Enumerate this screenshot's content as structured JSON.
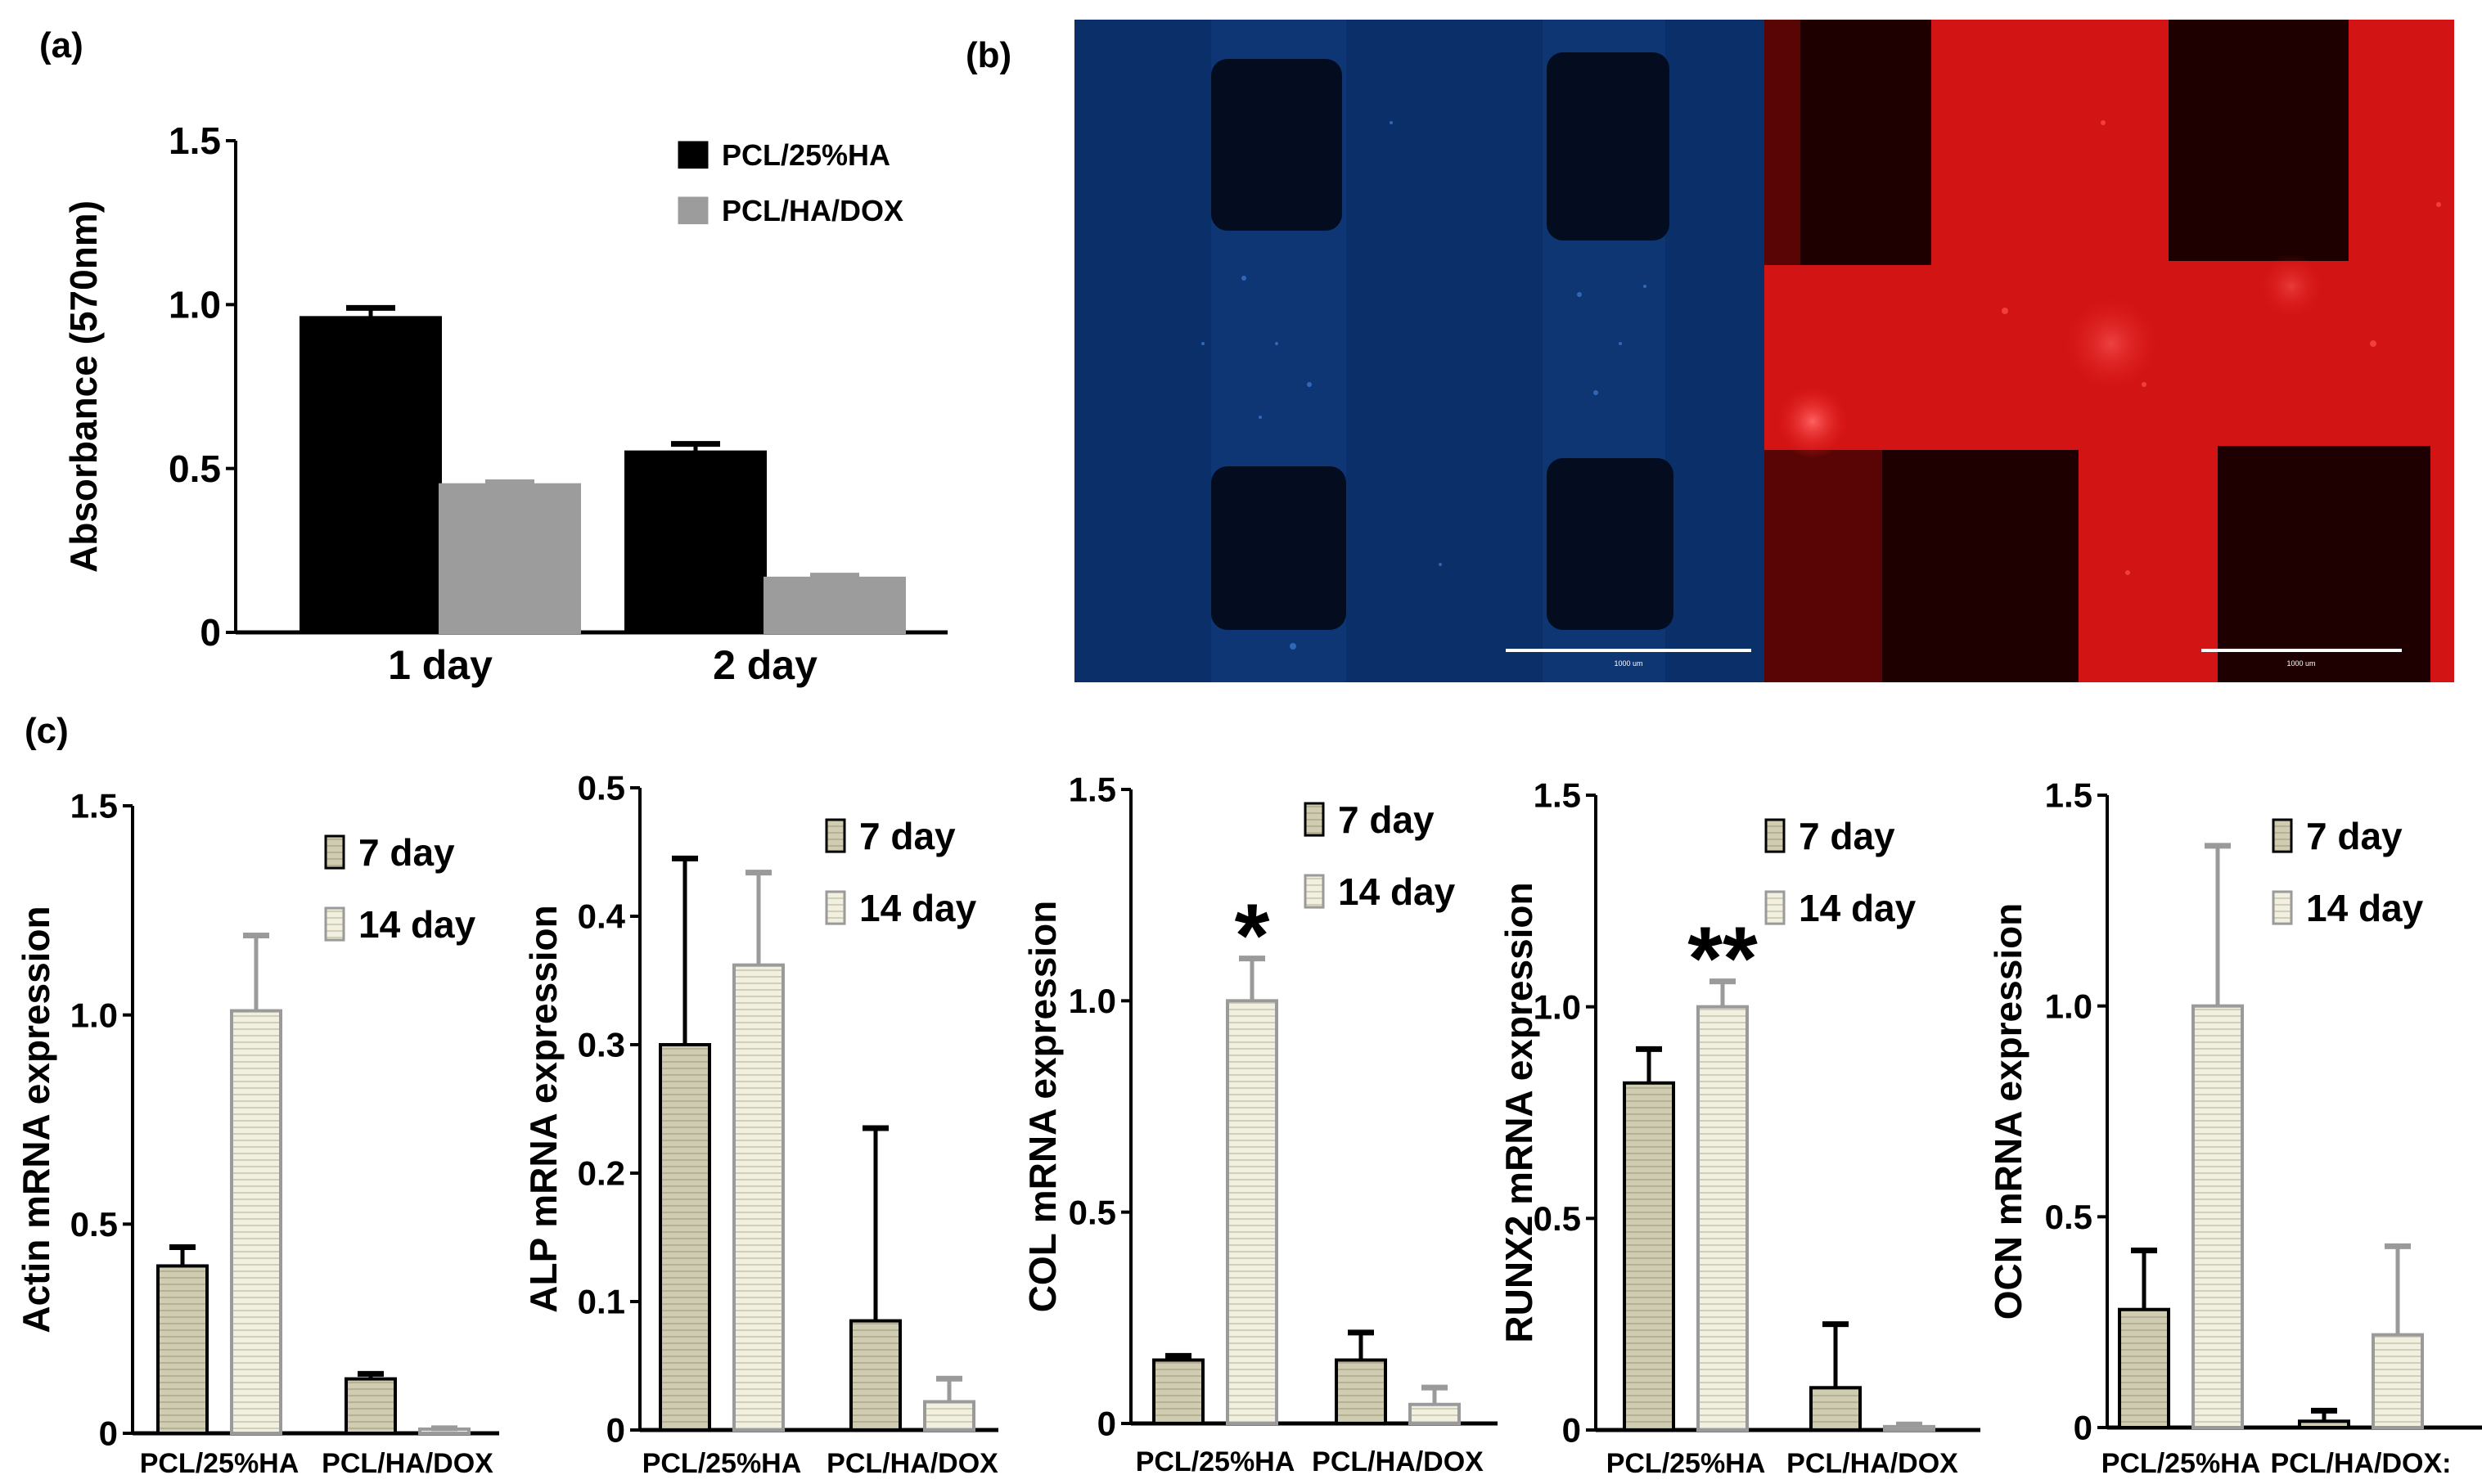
{
  "panel_labels": {
    "a": "(a)",
    "b": "(b)",
    "c": "(c)"
  },
  "colors": {
    "black_bar": "#000000",
    "gray_bar": "#9c9c9c",
    "beige_bar": "#c9c6ac",
    "light_bar": "#ecead8",
    "blue_image": "#0a2f63",
    "red_image": "#c81414"
  },
  "chart_data": [
    {
      "id": "a",
      "type": "bar",
      "title": "",
      "xlabel": "",
      "ylabel": "Absorbance (570nm)",
      "categories": [
        "1 day",
        "2 day"
      ],
      "ylim": [
        0,
        1.5
      ],
      "yticks": [
        0,
        0.5,
        1.0,
        1.5
      ],
      "ytick_labels": [
        "0",
        "0.5",
        "1.0",
        "1.5"
      ],
      "legend": "top-right",
      "series": [
        {
          "name": "PCL/25%HA",
          "values": [
            0.96,
            0.55
          ],
          "errors": [
            0.03,
            0.025
          ]
        },
        {
          "name": "PCL/HA/DOX",
          "values": [
            0.45,
            0.165
          ],
          "errors": [
            0.008,
            0.008
          ]
        }
      ]
    },
    {
      "id": "c1",
      "type": "bar",
      "ylabel": "Actin mRNA expression",
      "categories": [
        "PCL/25%HA",
        "PCL/HA/DOX"
      ],
      "ylim": [
        0,
        1.5
      ],
      "yticks": [
        0,
        0.5,
        1.0,
        1.5
      ],
      "ytick_labels": [
        "0",
        "0.5",
        "1.0",
        "1.5"
      ],
      "legend": "top-right",
      "series": [
        {
          "name": "7 day",
          "values": [
            0.4,
            0.13
          ],
          "errors": [
            0.045,
            0.012
          ]
        },
        {
          "name": "14 day",
          "values": [
            1.01,
            0.01
          ],
          "errors": [
            0.18,
            0.002
          ]
        }
      ],
      "annotations": []
    },
    {
      "id": "c2",
      "type": "bar",
      "ylabel": "ALP mRNA expression",
      "categories": [
        "PCL/25%HA",
        "PCL/HA/DOX"
      ],
      "ylim": [
        0,
        0.5
      ],
      "yticks": [
        0,
        0.1,
        0.2,
        0.3,
        0.4,
        0.5
      ],
      "ytick_labels": [
        "0",
        "0.1",
        "0.2",
        "0.3",
        "0.4",
        "0.5"
      ],
      "legend": "top-right",
      "series": [
        {
          "name": "7 day",
          "values": [
            0.3,
            0.085
          ],
          "errors": [
            0.145,
            0.15
          ]
        },
        {
          "name": "14 day",
          "values": [
            0.362,
            0.022
          ],
          "errors": [
            0.072,
            0.018
          ]
        }
      ],
      "annotations": []
    },
    {
      "id": "c3",
      "type": "bar",
      "ylabel": "COL mRNA expression",
      "categories": [
        "PCL/25%HA",
        "PCL/HA/DOX"
      ],
      "ylim": [
        0,
        1.5
      ],
      "yticks": [
        0,
        0.5,
        1.0,
        1.5
      ],
      "ytick_labels": [
        "0",
        "0.5",
        "1.0",
        "1.5"
      ],
      "legend": "top-right",
      "series": [
        {
          "name": "7 day",
          "values": [
            0.15,
            0.15
          ],
          "errors": [
            0.01,
            0.065
          ]
        },
        {
          "name": "14 day",
          "values": [
            1.0,
            0.045
          ],
          "errors": [
            0.1,
            0.04
          ]
        }
      ],
      "annotations": [
        {
          "text": "*",
          "series": 1,
          "category": 0
        }
      ]
    },
    {
      "id": "c4",
      "type": "bar",
      "ylabel": "RUNX2 mRNA expression",
      "categories": [
        "PCL/25%HA",
        "PCL/HA/DOX"
      ],
      "ylim": [
        0,
        1.5
      ],
      "yticks": [
        0,
        0.5,
        1.0,
        1.5
      ],
      "ytick_labels": [
        "0",
        "0.5",
        "1.0",
        "1.5"
      ],
      "legend": "top-right",
      "series": [
        {
          "name": "7 day",
          "values": [
            0.82,
            0.1
          ],
          "errors": [
            0.08,
            0.15
          ]
        },
        {
          "name": "14 day",
          "values": [
            1.0,
            0.008
          ],
          "errors": [
            0.06,
            0.005
          ]
        }
      ],
      "annotations": [
        {
          "text": "**",
          "series": 1,
          "category": 0
        }
      ]
    },
    {
      "id": "c5",
      "type": "bar",
      "ylabel": "OCN mRNA expression",
      "categories": [
        "PCL/25%HA",
        "PCL/HA/DOX:"
      ],
      "ylim": [
        0,
        1.5
      ],
      "yticks": [
        0,
        0.5,
        1.0,
        1.5
      ],
      "ytick_labels": [
        "0",
        "0.5",
        "1.0",
        "1.5"
      ],
      "legend": "top-right",
      "series": [
        {
          "name": "7 day",
          "values": [
            0.28,
            0.015
          ],
          "errors": [
            0.14,
            0.025
          ]
        },
        {
          "name": "14 day",
          "values": [
            1.0,
            0.22
          ],
          "errors": [
            0.38,
            0.21
          ]
        }
      ],
      "annotations": []
    }
  ],
  "images": [
    {
      "id": "b-left",
      "description_icon": "fluorescence-blue",
      "scale_bar_label": "1000 um"
    },
    {
      "id": "b-right",
      "description_icon": "fluorescence-red",
      "scale_bar_label": "1000 um"
    }
  ]
}
